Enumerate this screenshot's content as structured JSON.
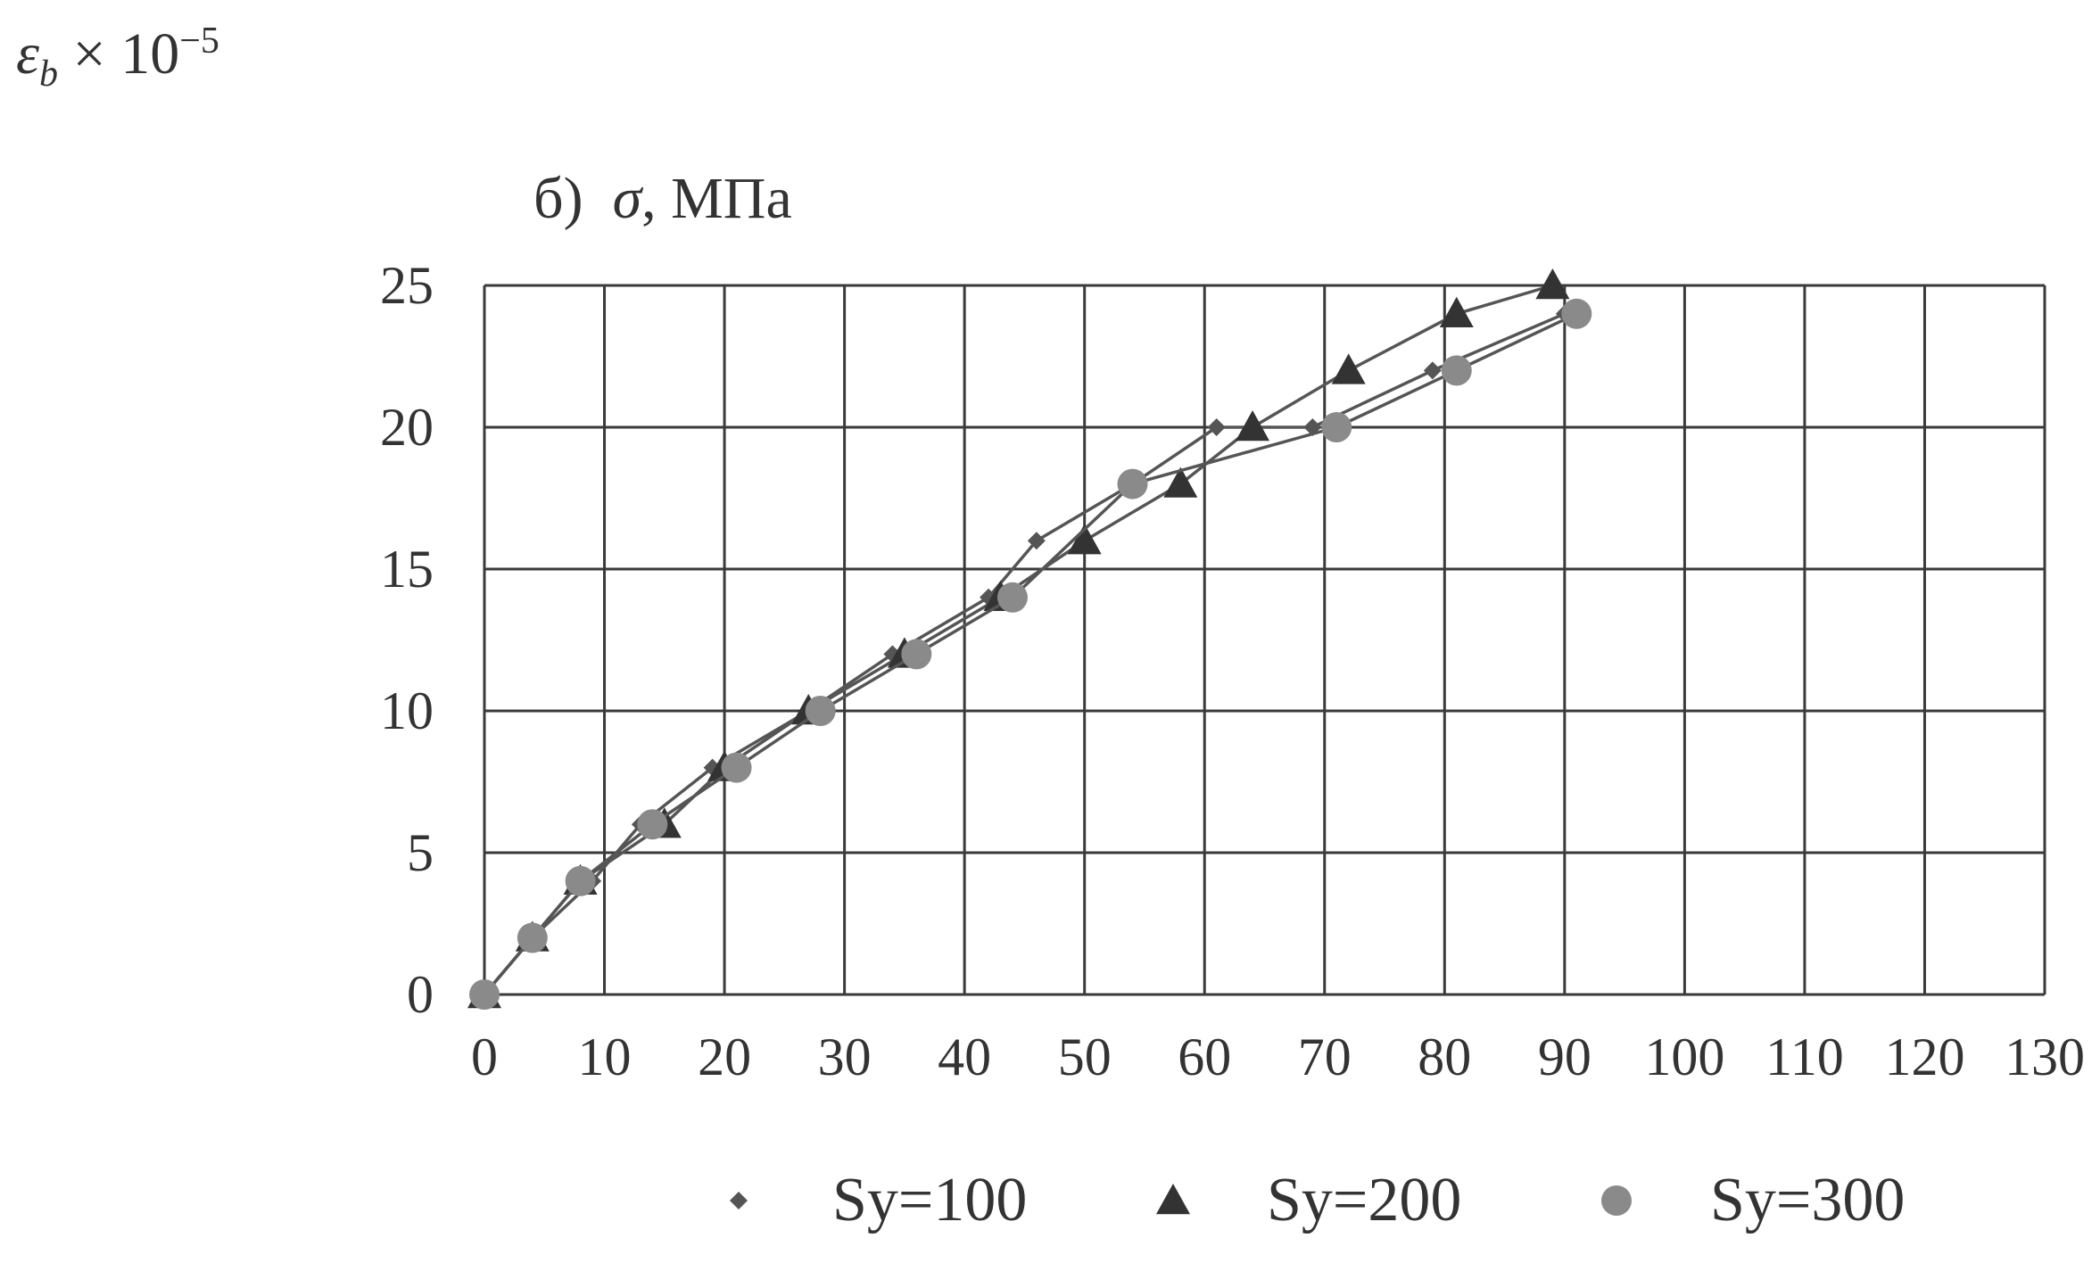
{
  "corner_label": {
    "symbol": "ε",
    "subscript": "b",
    "multiplier": "× 10",
    "exponent": "−5"
  },
  "subtitle": {
    "prefix": "б)",
    "symbol": "σ",
    "unit": ", МПа"
  },
  "chart_data": {
    "type": "scatter",
    "xlim": [
      0,
      130
    ],
    "ylim": [
      0,
      25
    ],
    "x_ticks": [
      "0",
      "10",
      "20",
      "30",
      "40",
      "50",
      "60",
      "70",
      "80",
      "90",
      "100",
      "110",
      "120",
      "130"
    ],
    "y_ticks": [
      "0",
      "5",
      "10",
      "15",
      "20",
      "25"
    ],
    "grid": true,
    "legend_position": "bottom",
    "series": [
      {
        "name": "Sy=100",
        "marker": "diamond",
        "color": "#555555",
        "x": [
          0,
          4,
          9,
          13,
          19,
          27,
          34,
          42,
          46,
          54,
          61,
          69,
          79,
          90
        ],
        "y": [
          0,
          2,
          4,
          6,
          8,
          10,
          12,
          14,
          16,
          18,
          20,
          20,
          22,
          24
        ]
      },
      {
        "name": "Sy=200",
        "marker": "triangle",
        "color": "#333333",
        "x": [
          0,
          4,
          8,
          15,
          20,
          27,
          35,
          43,
          50,
          58,
          64,
          72,
          81,
          89
        ],
        "y": [
          0,
          2,
          4,
          6,
          8,
          10,
          12,
          14,
          16,
          18,
          20,
          22,
          24,
          25
        ]
      },
      {
        "name": "Sy=300",
        "marker": "circle",
        "color": "#8a8a8a",
        "x": [
          0,
          4,
          8,
          14,
          21,
          28,
          36,
          44,
          54,
          71,
          81,
          91
        ],
        "y": [
          0,
          2,
          4,
          6,
          8,
          10,
          12,
          14,
          18,
          20,
          22,
          24
        ]
      }
    ]
  }
}
